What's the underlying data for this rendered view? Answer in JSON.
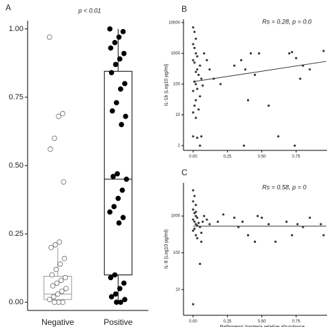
{
  "chart_data": [
    {
      "type": "box",
      "panel_label": "A",
      "annotation": "p < 0.01",
      "categories": [
        "Negative",
        "Positive"
      ],
      "colors": [
        "#9a9a9a",
        "#000000"
      ],
      "boxes": [
        {
          "min": 0.0,
          "q1": 0.01,
          "median": 0.03,
          "q3": 0.095,
          "max": 0.2
        },
        {
          "min": 0.0,
          "q1": 0.1,
          "median": 0.45,
          "q3": 0.845,
          "max": 1.0
        }
      ],
      "points": [
        [
          0.97,
          0.69,
          0.68,
          0.6,
          0.56,
          0.44,
          0.22,
          0.21,
          0.2,
          0.16,
          0.14,
          0.12,
          0.1,
          0.09,
          0.08,
          0.07,
          0.06,
          0.05,
          0.04,
          0.03,
          0.02,
          0.01,
          0.0,
          0.0,
          0.0
        ],
        [
          1.0,
          0.99,
          0.97,
          0.95,
          0.93,
          0.91,
          0.89,
          0.87,
          0.84,
          0.8,
          0.78,
          0.73,
          0.7,
          0.68,
          0.65,
          0.47,
          0.46,
          0.45,
          0.41,
          0.38,
          0.35,
          0.33,
          0.31,
          0.29,
          0.1,
          0.09,
          0.07,
          0.05,
          0.03,
          0.02,
          0.01,
          0.0,
          0.0
        ]
      ],
      "ylim": [
        -0.03,
        1.03
      ],
      "yticks": [
        {
          "value": 0,
          "label": "0.00"
        },
        {
          "value": 0.25,
          "label": "0.25"
        },
        {
          "value": 0.5,
          "label": "0.50"
        },
        {
          "value": 0.75,
          "label": "0.75"
        },
        {
          "value": 1,
          "label": "1.00"
        }
      ]
    },
    {
      "type": "scatter",
      "panel_label": "B",
      "annotation": "Rs = 0.28, p = 0.0",
      "ylabel": "IL-1b (Log10 pg/ml)",
      "log_y": true,
      "color": "#333333",
      "x": [
        0,
        0.01,
        0.02,
        0,
        0.01,
        0.02,
        0.03,
        0,
        0.01,
        0.05,
        0.03,
        0.02,
        0.04,
        0.06,
        0.01,
        0.02,
        0.07,
        0.03,
        0,
        0.05,
        0.02,
        0.01,
        0.04,
        0,
        0.02,
        0,
        0.03,
        0.06,
        0.08,
        0.1,
        0.12,
        0.15,
        0.2,
        0.3,
        0.35,
        0.42,
        0.38,
        0.45,
        0.48,
        0.4,
        0.55,
        0.62,
        0.7,
        0.72,
        0.75,
        0.8,
        0.78,
        0.85,
        0.95,
        0.74,
        0.37,
        0.05
      ],
      "values": [
        7000,
        5000,
        3000,
        2000,
        1500,
        1000,
        800,
        600,
        500,
        400,
        300,
        250,
        200,
        150,
        120,
        100,
        90,
        70,
        60,
        40,
        30,
        20,
        15,
        12,
        8,
        2,
        1.8,
        2,
        1000,
        600,
        300,
        150,
        100,
        400,
        600,
        1000,
        300,
        200,
        1000,
        30,
        20,
        2,
        1000,
        1100,
        700,
        400,
        150,
        300,
        1200,
        1,
        1,
        1
      ],
      "fit": {
        "x": [
          0,
          0.97
        ],
        "values": [
          120,
          550
        ]
      },
      "xlim": [
        -0.07,
        0.975
      ],
      "ylim": [
        0.7,
        12800
      ],
      "xticks": [
        {
          "value": 0,
          "label": "0.00"
        },
        {
          "value": 0.25,
          "label": "0.25"
        },
        {
          "value": 0.5,
          "label": "0.50"
        },
        {
          "value": 0.75,
          "label": "0.75"
        }
      ],
      "yticks": [
        1,
        10,
        100,
        1000,
        10000
      ]
    },
    {
      "type": "scatter",
      "panel_label": "C",
      "annotation": "Rs = 0.58, p = 0",
      "ylabel": "IL-8 (Log10 pg/ml)",
      "xlabel": "Pathogenic bacteria relative abundance",
      "log_y": true,
      "color": "#333333",
      "x": [
        0,
        0.01,
        0,
        0.02,
        0,
        0.01,
        0.02,
        0.03,
        0,
        0.01,
        0.04,
        0.02,
        0.03,
        0.05,
        0.01,
        0,
        0.06,
        0.02,
        0.07,
        0.03,
        0.05,
        0.06,
        0,
        0.08,
        0.1,
        0.12,
        0.18,
        0.22,
        0.3,
        0.33,
        0.36,
        0.4,
        0.45,
        0.5,
        0.55,
        0.6,
        0.68,
        0.72,
        0.76,
        0.8,
        0.85,
        0.93,
        0.95,
        0.47,
        0.02
      ],
      "values": [
        5000,
        3500,
        2500,
        2000,
        1500,
        1200,
        1000,
        900,
        800,
        700,
        650,
        600,
        550,
        500,
        450,
        400,
        350,
        300,
        700,
        250,
        50,
        200,
        4,
        1000,
        800,
        600,
        700,
        1100,
        900,
        500,
        700,
        300,
        200,
        900,
        600,
        200,
        700,
        300,
        600,
        500,
        900,
        600,
        300,
        1000,
        1300
      ],
      "fit": {
        "x": [
          0,
          0.97
        ],
        "values": [
          530,
          530
        ]
      },
      "xlim": [
        -0.07,
        0.975
      ],
      "ylim": [
        2,
        8000
      ],
      "xticks": [
        {
          "value": 0,
          "label": "0.00"
        },
        {
          "value": 0.25,
          "label": "0.25"
        },
        {
          "value": 0.5,
          "label": "0.50"
        },
        {
          "value": 0.75,
          "label": "0.75"
        }
      ],
      "yticks": [
        10,
        100,
        1000
      ]
    }
  ]
}
